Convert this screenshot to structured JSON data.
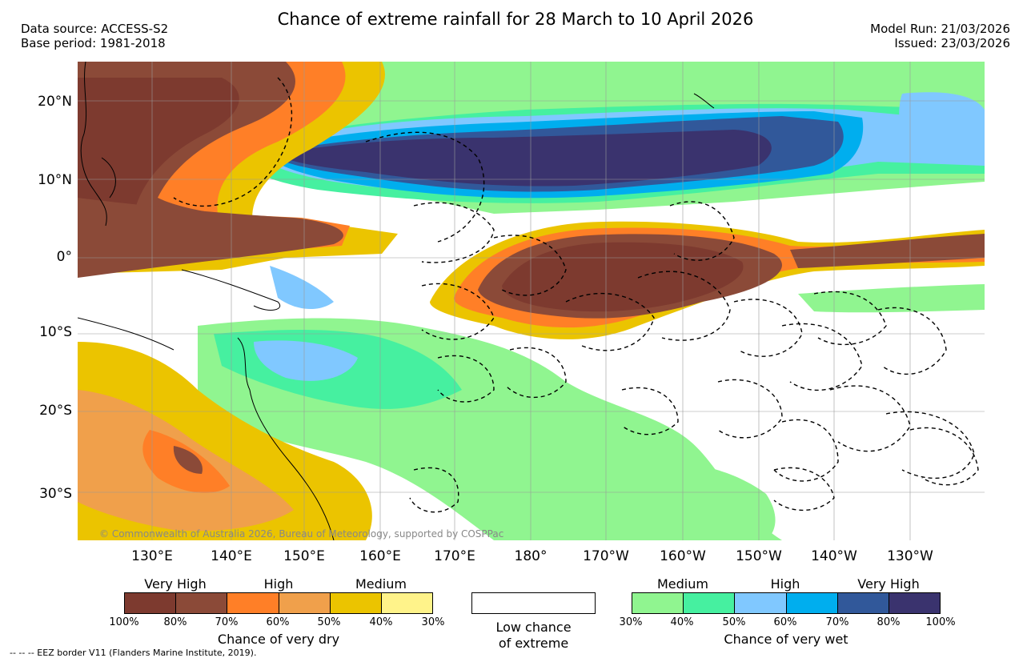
{
  "title": "Chance of extreme rainfall for 28 March to 10 April 2026",
  "header": {
    "data_source": "Data source: ACCESS-S2",
    "base_period": "Base period: 1981-2018",
    "model_run": "Model Run: 21/03/2026",
    "issued": "Issued: 23/03/2026"
  },
  "map": {
    "lat_labels": [
      "20°N",
      "10°N",
      "0°",
      "10°S",
      "20°S",
      "30°S"
    ],
    "lon_labels": [
      "130°E",
      "140°E",
      "150°E",
      "160°E",
      "170°E",
      "180°",
      "170°W",
      "160°W",
      "150°W",
      "140°W",
      "130°W"
    ],
    "copyright": "© Commonwealth of Australia 2026, Bureau of Meteorology, supported by COSPPac"
  },
  "legend": {
    "dry": {
      "categories": [
        "Very High",
        "High",
        "Medium"
      ],
      "ticks": [
        "100%",
        "80%",
        "70%",
        "60%",
        "50%",
        "40%",
        "30%"
      ],
      "colors": [
        "#7d3a2f",
        "#8b4a38",
        "#ff7f27",
        "#f0a04b",
        "#ebc400",
        "#fff38a"
      ],
      "caption": "Chance of very dry"
    },
    "low": {
      "line1": "Low chance",
      "line2": "of extreme"
    },
    "wet": {
      "categories": [
        "Medium",
        "High",
        "Very High"
      ],
      "ticks": [
        "30%",
        "40%",
        "50%",
        "60%",
        "70%",
        "80%",
        "100%"
      ],
      "colors": [
        "#90f590",
        "#46f0a0",
        "#80c8ff",
        "#00aeee",
        "#31589a",
        "#3a336e"
      ],
      "caption": "Chance of very wet"
    },
    "eez_note": "-- -- -- EEZ border V11 (Flanders Marine Institute, 2019)."
  }
}
